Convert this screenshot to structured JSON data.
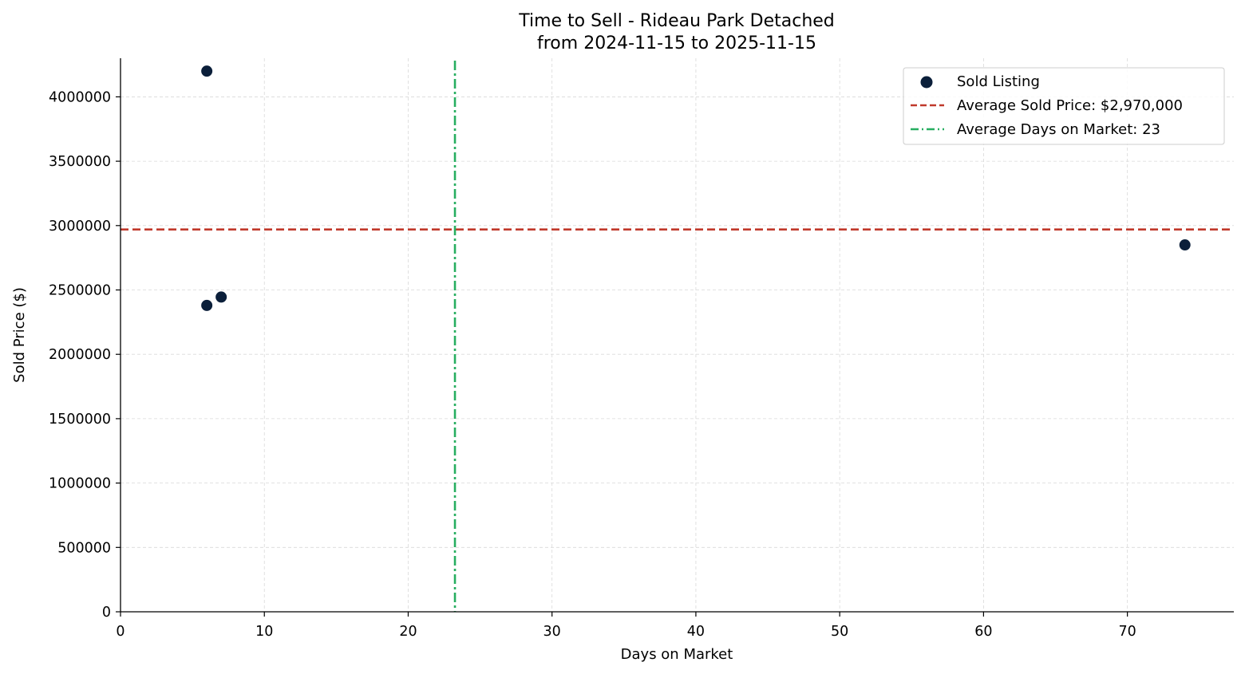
{
  "chart_data": {
    "type": "scatter",
    "title": "Time to Sell - Rideau Park Detached",
    "subtitle": "from 2024-11-15 to 2025-11-15",
    "xlabel": "Days on Market",
    "ylabel": "Sold Price ($)",
    "xlim": [
      0,
      77.4
    ],
    "ylim": [
      0,
      4300000
    ],
    "x_ticks": [
      0,
      10,
      20,
      30,
      40,
      50,
      60,
      70
    ],
    "y_ticks": [
      0,
      500000,
      1000000,
      1500000,
      2000000,
      2500000,
      3000000,
      3500000,
      4000000
    ],
    "grid": true,
    "legend_position": "top-right",
    "series": [
      {
        "name": "Sold Listing",
        "color": "#0b1f3a",
        "points": [
          {
            "x": 6,
            "y": 4200000
          },
          {
            "x": 6,
            "y": 2380000
          },
          {
            "x": 7,
            "y": 2445000
          },
          {
            "x": 74,
            "y": 2850000
          }
        ]
      }
    ],
    "reference_lines": [
      {
        "orientation": "horizontal",
        "value": 2970000,
        "label": "Average Sold Price: $2,970,000",
        "color": "#c0392b",
        "style": "dashed"
      },
      {
        "orientation": "vertical",
        "value": 23.25,
        "label": "Average Days on Market: 23",
        "color": "#27ae60",
        "style": "dashdot"
      }
    ]
  }
}
